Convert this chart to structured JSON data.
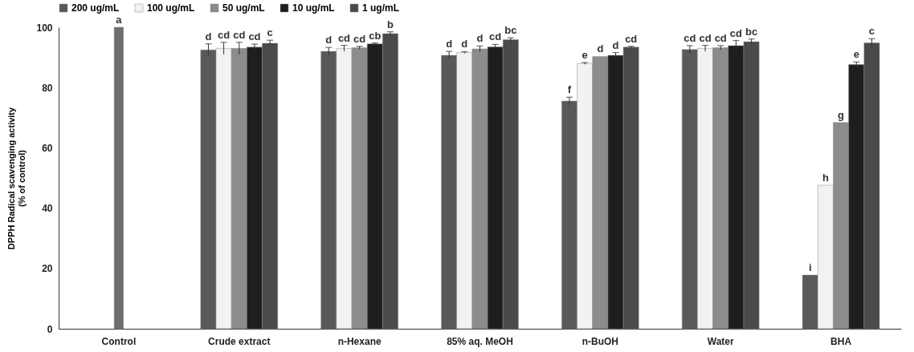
{
  "chart_data": {
    "type": "bar",
    "ylabel": "DPPH Radical scavenging activity\n(% of control)",
    "categories": [
      "Control",
      "Crude extract",
      "n-Hexane",
      "85% aq. MeOH",
      "n-BuOH",
      "Water",
      "BHA"
    ],
    "series": [
      {
        "name": "200 ug/mL",
        "color": "#595959",
        "values": [
          null,
          92.5,
          92,
          90.7,
          75.5,
          92.6,
          17.8
        ],
        "errors": [
          null,
          2,
          1.3,
          1.3,
          1.3,
          1.3,
          null
        ],
        "value_labels": [
          null,
          "d",
          "d",
          "d",
          "f",
          "cd",
          "i"
        ]
      },
      {
        "name": "100 ug/mL",
        "color": "#f2f2f2",
        "values": [
          null,
          93,
          93,
          91.6,
          88,
          93,
          47.6
        ],
        "errors": [
          null,
          2,
          1,
          0.3,
          0.3,
          1,
          null
        ],
        "value_labels": [
          null,
          "cd",
          "cd",
          "d",
          "e",
          "cd",
          "h"
        ]
      },
      {
        "name": "50 ug/mL",
        "color": "#8c8c8c",
        "values": [
          null,
          93,
          93.2,
          92.8,
          90.3,
          93.2,
          68.4
        ],
        "errors": [
          null,
          2,
          0.5,
          1,
          null,
          0.7,
          null
        ],
        "value_labels": [
          null,
          "cd",
          "cd",
          "d",
          "d",
          "cd",
          "g"
        ]
      },
      {
        "name": "10 ug/mL",
        "color": "#1e1e1e",
        "values": [
          null,
          93.4,
          94.5,
          93.5,
          90.7,
          93.9,
          87.6
        ],
        "errors": [
          null,
          1,
          0.3,
          0.8,
          0.9,
          1.7,
          0.9
        ],
        "value_labels": [
          null,
          "cd",
          "cb",
          "cd",
          "d",
          "cd",
          "e"
        ]
      },
      {
        "name": "1 ug/mL",
        "color": "#4a4a4a",
        "values": [
          null,
          94.7,
          97.9,
          95.9,
          93.4,
          95.2,
          94.8
        ],
        "errors": [
          null,
          1,
          0.6,
          0.6,
          0.3,
          0.9,
          1.4
        ],
        "value_labels": [
          null,
          "c",
          "b",
          "bc",
          "cd",
          "bc",
          "c"
        ]
      },
      {
        "color": "#6e6e6e",
        "values": [
          100,
          null,
          null,
          null,
          null,
          null,
          null
        ],
        "value_labels": [
          "a",
          null,
          null,
          null,
          null,
          null,
          null
        ]
      }
    ],
    "ylim": [
      0,
      100
    ],
    "yticks": [
      0,
      20,
      40,
      60,
      80,
      100
    ],
    "legend": "top",
    "grid": false
  }
}
